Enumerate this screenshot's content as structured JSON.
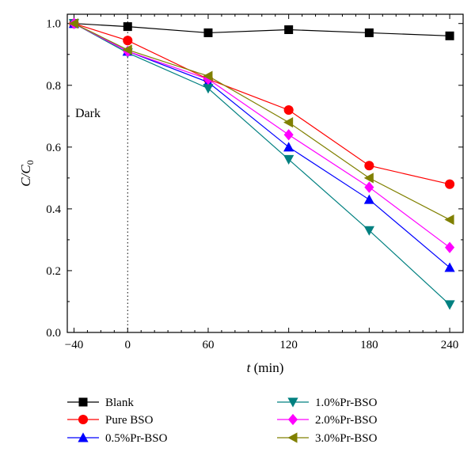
{
  "chart_data": {
    "type": "line",
    "x": [
      -40,
      0,
      60,
      120,
      180,
      240
    ],
    "xlabel_main": "t",
    "xlabel_unit": " (min)",
    "ylabel_main": "C/C",
    "ylabel_sub": "0",
    "xlim": [
      -45,
      250
    ],
    "ylim": [
      0,
      1.03
    ],
    "xticks": [
      -40,
      0,
      60,
      120,
      180,
      240
    ],
    "xtick_labels": [
      "−40",
      "0",
      "60",
      "120",
      "180",
      "240"
    ],
    "yticks": [
      0,
      0.2,
      0.4,
      0.6,
      0.8,
      1.0
    ],
    "ytick_labels": [
      "0.0",
      "0.2",
      "0.4",
      "0.6",
      "0.8",
      "1.0"
    ],
    "annotation": "Dark",
    "dark_line_x": 0,
    "legend_position": "below",
    "series": [
      {
        "name": "Blank",
        "color": "#000000",
        "marker": "square",
        "values": [
          1.0,
          0.99,
          0.97,
          0.98,
          0.97,
          0.96
        ]
      },
      {
        "name": "Pure BSO",
        "color": "#ff0000",
        "marker": "circle",
        "values": [
          1.0,
          0.945,
          0.82,
          0.72,
          0.54,
          0.48
        ]
      },
      {
        "name": "0.5%Pr-BSO",
        "color": "#0000ff",
        "marker": "triangle-up",
        "values": [
          1.0,
          0.91,
          0.81,
          0.6,
          0.43,
          0.21
        ]
      },
      {
        "name": "1.0%Pr-BSO",
        "color": "#008080",
        "marker": "triangle-down",
        "values": [
          1.0,
          0.905,
          0.79,
          0.56,
          0.33,
          0.09
        ]
      },
      {
        "name": "2.0%Pr-BSO",
        "color": "#ff00ff",
        "marker": "diamond",
        "values": [
          1.0,
          0.91,
          0.82,
          0.64,
          0.47,
          0.275
        ]
      },
      {
        "name": "3.0%Pr-BSO",
        "color": "#808000",
        "marker": "triangle-left",
        "values": [
          1.0,
          0.915,
          0.83,
          0.68,
          0.5,
          0.365
        ]
      }
    ]
  }
}
